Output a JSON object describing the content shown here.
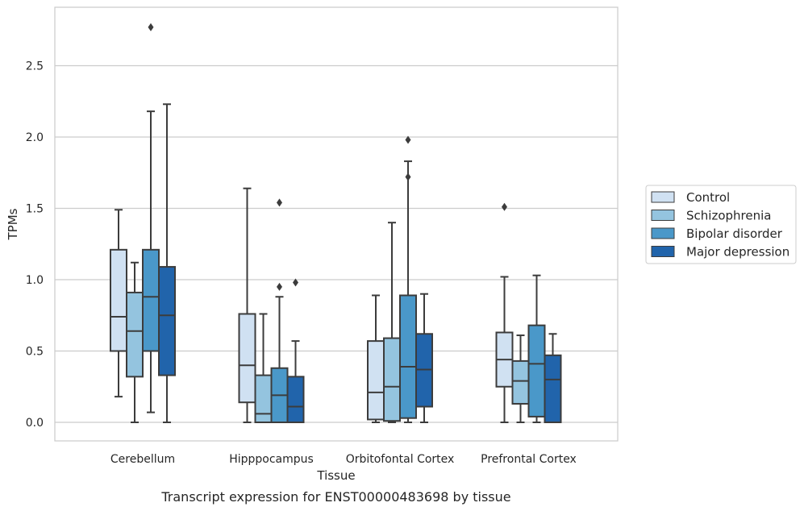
{
  "caption": "Transcript expression for ENST00000483698 by tissue",
  "chart_data": {
    "type": "box",
    "xlabel": "Tissue",
    "ylabel": "TPMs",
    "ylim": [
      -0.13,
      2.92
    ],
    "yticks": [
      0.0,
      0.5,
      1.0,
      1.5,
      2.0,
      2.5
    ],
    "ytick_labels": [
      "0.0",
      "0.5",
      "1.0",
      "1.5",
      "2.0",
      "2.5"
    ],
    "grid": "horizontal",
    "legend_position": "right",
    "categories": [
      "Cerebellum",
      "Hipppocampus",
      "Orbitofontal Cortex",
      "Prefrontal Cortex"
    ],
    "series": [
      {
        "name": "Control",
        "color": "#d0e1f2",
        "boxes": [
          {
            "whislo": 0.18,
            "q1": 0.5,
            "med": 0.74,
            "q3": 1.21,
            "whishi": 1.49,
            "fliers": []
          },
          {
            "whislo": 0.0,
            "q1": 0.14,
            "med": 0.4,
            "q3": 0.76,
            "whishi": 1.64,
            "fliers": []
          },
          {
            "whislo": 0.0,
            "q1": 0.02,
            "med": 0.21,
            "q3": 0.57,
            "whishi": 0.89,
            "fliers": []
          },
          {
            "whislo": 0.0,
            "q1": 0.25,
            "med": 0.44,
            "q3": 0.63,
            "whishi": 1.02,
            "fliers": [
              1.51
            ]
          }
        ]
      },
      {
        "name": "Schizophrenia",
        "color": "#94c4df",
        "boxes": [
          {
            "whislo": 0.0,
            "q1": 0.32,
            "med": 0.64,
            "q3": 0.91,
            "whishi": 1.12,
            "fliers": []
          },
          {
            "whislo": 0.0,
            "q1": 0.0,
            "med": 0.06,
            "q3": 0.33,
            "whishi": 0.76,
            "fliers": []
          },
          {
            "whislo": 0.0,
            "q1": 0.01,
            "med": 0.25,
            "q3": 0.59,
            "whishi": 1.4,
            "fliers": []
          },
          {
            "whislo": 0.0,
            "q1": 0.13,
            "med": 0.29,
            "q3": 0.43,
            "whishi": 0.61,
            "fliers": []
          }
        ]
      },
      {
        "name": "Bipolar disorder",
        "color": "#4a98c9",
        "boxes": [
          {
            "whislo": 0.07,
            "q1": 0.5,
            "med": 0.88,
            "q3": 1.21,
            "whishi": 2.18,
            "fliers": [
              2.77
            ]
          },
          {
            "whislo": 0.0,
            "q1": 0.0,
            "med": 0.19,
            "q3": 0.38,
            "whishi": 0.88,
            "fliers": [
              0.95,
              1.54
            ]
          },
          {
            "whislo": 0.0,
            "q1": 0.03,
            "med": 0.39,
            "q3": 0.89,
            "whishi": 1.83,
            "fliers": [
              1.72,
              1.98
            ]
          },
          {
            "whislo": 0.0,
            "q1": 0.04,
            "med": 0.41,
            "q3": 0.68,
            "whishi": 1.03,
            "fliers": []
          }
        ]
      },
      {
        "name": "Major depression",
        "color": "#2164ab",
        "boxes": [
          {
            "whislo": 0.0,
            "q1": 0.33,
            "med": 0.75,
            "q3": 1.09,
            "whishi": 2.23,
            "fliers": []
          },
          {
            "whislo": 0.0,
            "q1": 0.0,
            "med": 0.11,
            "q3": 0.32,
            "whishi": 0.57,
            "fliers": [
              0.98
            ]
          },
          {
            "whislo": 0.0,
            "q1": 0.11,
            "med": 0.37,
            "q3": 0.62,
            "whishi": 0.9,
            "fliers": []
          },
          {
            "whislo": 0.0,
            "q1": 0.0,
            "med": 0.3,
            "q3": 0.47,
            "whishi": 0.62,
            "fliers": []
          }
        ]
      }
    ]
  }
}
